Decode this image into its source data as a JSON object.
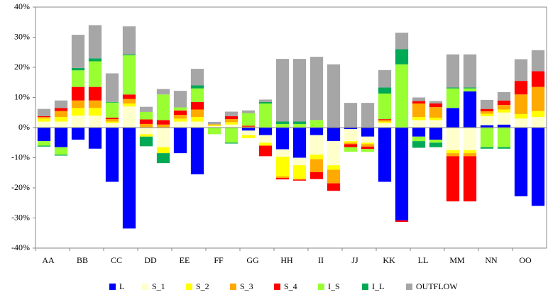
{
  "chart_data": {
    "type": "stacked-bar",
    "categories": [
      "AA",
      null,
      "BB",
      null,
      "CC",
      null,
      "DD",
      null,
      "EE",
      null,
      "FF",
      null,
      "GG",
      null,
      "HH",
      null,
      "II",
      null,
      "JJ",
      null,
      "KK",
      null,
      "LL",
      null,
      "MM",
      null,
      "NN",
      null,
      "OO",
      null
    ],
    "series": [
      {
        "name": "L",
        "color": "#0000ff",
        "values": [
          -4.5,
          -6.5,
          -4,
          -7,
          -18,
          -33.5,
          0,
          0,
          -8.5,
          -15.5,
          0,
          0,
          -1,
          -2.5,
          -7.2,
          -10,
          -2.5,
          -4.5,
          -0.5,
          -3,
          -18,
          -30.8,
          -3,
          -4,
          6.5,
          12,
          0.8,
          1,
          -22.8,
          -26
        ]
      },
      {
        "name": "S_1",
        "color": "#ffffcc",
        "values": [
          2,
          2,
          4,
          4,
          1.5,
          7,
          -2.2,
          -6.5,
          2,
          2,
          0.5,
          1,
          -1.5,
          -2.5,
          -2.5,
          -2.5,
          -6.5,
          -8,
          -4,
          -2,
          1.5,
          0,
          2.5,
          2.5,
          -7.5,
          -7.5,
          3,
          4,
          3,
          3.5
        ]
      },
      {
        "name": "S_2",
        "color": "#ffff00",
        "values": [
          1,
          1.5,
          2.5,
          2.5,
          0.5,
          1,
          -0.8,
          -2,
          1,
          1.5,
          0.3,
          0.8,
          -1,
          -1,
          -6.5,
          -4.5,
          -1.5,
          -1.5,
          -0.5,
          -0.5,
          0.5,
          0,
          1,
          0.8,
          -1,
          -1,
          0.8,
          1,
          1.5,
          2
        ]
      },
      {
        "name": "S_3",
        "color": "#ffaa00",
        "values": [
          0.5,
          2,
          2.5,
          2.5,
          0.8,
          1.5,
          1.2,
          1,
          1.2,
          2.5,
          0.3,
          1,
          0.3,
          0,
          -0.5,
          -0.3,
          -4.3,
          -4.5,
          -0.5,
          -0.8,
          0.5,
          0,
          4.5,
          3.5,
          -1,
          -1,
          0.8,
          1.5,
          6.5,
          8
        ]
      },
      {
        "name": "S_4",
        "color": "#ff0000",
        "values": [
          0.3,
          1,
          4.5,
          4.5,
          0.5,
          1.5,
          1.5,
          1.5,
          1.5,
          2.5,
          0,
          1,
          0.3,
          -3.5,
          -0.5,
          -0.3,
          -2.3,
          -2.5,
          -1,
          -0.8,
          0.3,
          -0.5,
          0.8,
          1.2,
          -15,
          -15,
          0.8,
          1.5,
          4.5,
          5.2
        ]
      },
      {
        "name": "I_S",
        "color": "#99ff33",
        "values": [
          -1.5,
          -2.5,
          5.5,
          8.5,
          5,
          13,
          2.5,
          8.5,
          1,
          4.5,
          -2.2,
          -5,
          4.2,
          8,
          1.2,
          1.2,
          2.5,
          0,
          -1.5,
          -1,
          8.5,
          21,
          -1.5,
          -1,
          6.5,
          1,
          -6.5,
          -6.5,
          0,
          0
        ]
      },
      {
        "name": "I_L",
        "color": "#00aa55",
        "values": [
          -0.3,
          -0.3,
          0.8,
          1,
          0.2,
          0.3,
          -3.2,
          -3.3,
          0,
          1,
          0,
          -0.3,
          0,
          0.5,
          0.8,
          0.8,
          0,
          0,
          0,
          0,
          2,
          5,
          -2.2,
          -1.5,
          0.3,
          0.3,
          -0.5,
          -0.5,
          0,
          0
        ]
      },
      {
        "name": "OUTFLOW",
        "color": "#a6a6a6",
        "values": [
          2.4,
          2.5,
          11,
          11,
          9.5,
          9.3,
          1.7,
          1.8,
          5.5,
          5.5,
          0.8,
          1.5,
          0.9,
          0.8,
          20.8,
          20.8,
          21,
          21,
          8.2,
          8.2,
          5.8,
          5.5,
          1.2,
          0.8,
          11,
          11,
          3,
          2.8,
          7.2,
          7
        ]
      }
    ],
    "ylim": [
      -40,
      40
    ],
    "yticks": [
      {
        "value": -40,
        "label": "-40%"
      },
      {
        "value": -30,
        "label": "-30%"
      },
      {
        "value": -20,
        "label": "-20%"
      },
      {
        "value": -10,
        "label": "-10%"
      },
      {
        "value": 0,
        "label": "0%"
      },
      {
        "value": 10,
        "label": "10%"
      },
      {
        "value": 20,
        "label": "20%"
      },
      {
        "value": 30,
        "label": "30%"
      },
      {
        "value": 40,
        "label": "40%"
      }
    ],
    "legend": "bottom"
  }
}
